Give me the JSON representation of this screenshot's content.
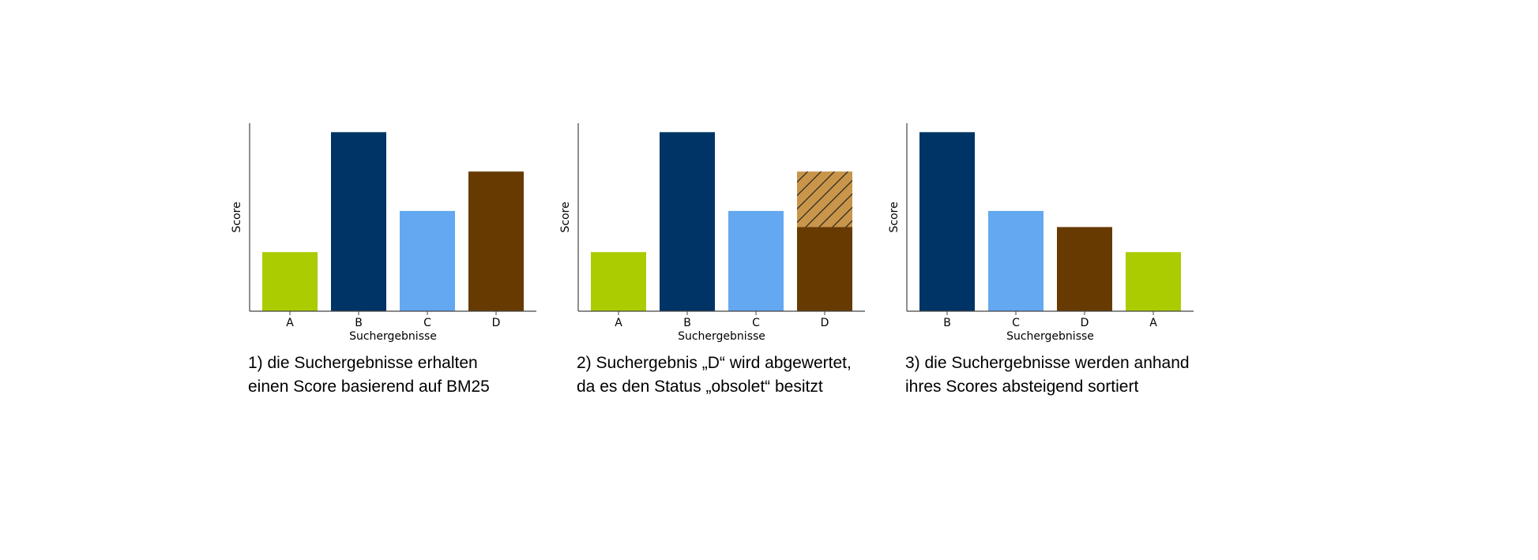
{
  "chart_data": [
    {
      "type": "bar",
      "xlabel": "Suchergebnisse",
      "ylabel": "Score",
      "ylim": [
        0,
        1.05
      ],
      "categories": [
        "A",
        "B",
        "C",
        "D"
      ],
      "values": [
        0.33,
        1.0,
        0.56,
        0.78
      ],
      "colors": [
        "#AACC00",
        "#003366",
        "#63A8F0",
        "#663A00"
      ],
      "caption": [
        "1) die Suchergebnisse erhalten",
        "einen Score basierend auf BM25"
      ]
    },
    {
      "type": "bar",
      "xlabel": "Suchergebnisse",
      "ylabel": "Score",
      "ylim": [
        0,
        1.05
      ],
      "categories": [
        "A",
        "B",
        "C",
        "D"
      ],
      "values": [
        0.33,
        1.0,
        0.56,
        0.47
      ],
      "devalued": [
        0,
        0,
        0,
        0.31
      ],
      "colors": [
        "#AACC00",
        "#003366",
        "#63A8F0",
        "#663A00"
      ],
      "devalued_color": "#C8954A",
      "caption": [
        "2) Suchergebnis „D“ wird abgewertet,",
        "da es den Status „obsolet“ besitzt"
      ]
    },
    {
      "type": "bar",
      "xlabel": "Suchergebnisse",
      "ylabel": "Score",
      "ylim": [
        0,
        1.05
      ],
      "categories": [
        "B",
        "C",
        "D",
        "A"
      ],
      "values": [
        1.0,
        0.56,
        0.47,
        0.33
      ],
      "colors": [
        "#003366",
        "#63A8F0",
        "#663A00",
        "#AACC00"
      ],
      "caption": [
        "3) die Suchergebnisse werden anhand",
        "ihres Scores absteigend sortiert"
      ]
    }
  ]
}
